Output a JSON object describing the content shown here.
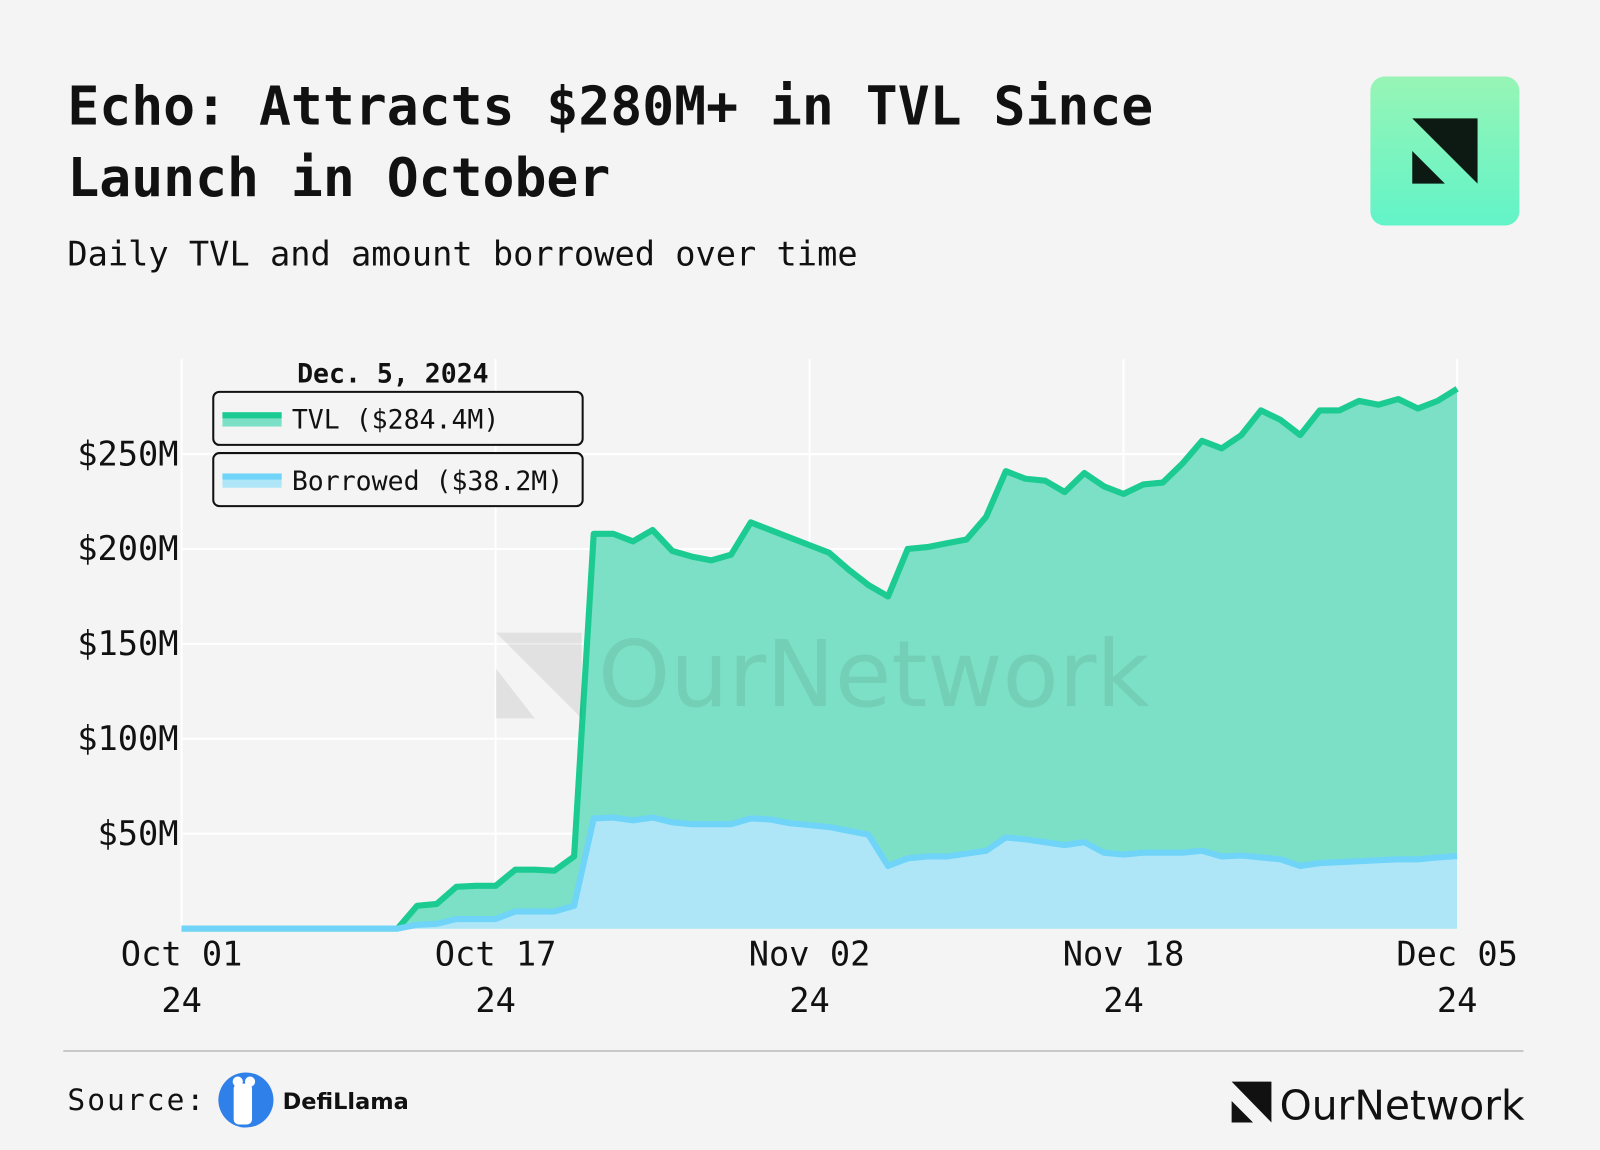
{
  "title": "Echo: Attracts $280M+ in TVL Since Launch in October",
  "subtitle": "Daily TVL and amount borrowed over time",
  "watermark": "OurNetwork",
  "footer": {
    "source_label": "Source:",
    "source_name": "DefiLlama",
    "brand": "OurNetwork"
  },
  "chart_data": {
    "type": "area",
    "legend_title": "Dec. 5, 2024",
    "legend": "upper-left",
    "grid": true,
    "x": [
      "2024-10-01",
      "2024-10-02",
      "2024-10-03",
      "2024-10-04",
      "2024-10-05",
      "2024-10-06",
      "2024-10-07",
      "2024-10-08",
      "2024-10-09",
      "2024-10-10",
      "2024-10-11",
      "2024-10-12",
      "2024-10-13",
      "2024-10-14",
      "2024-10-15",
      "2024-10-16",
      "2024-10-17",
      "2024-10-18",
      "2024-10-19",
      "2024-10-20",
      "2024-10-21",
      "2024-10-22",
      "2024-10-23",
      "2024-10-24",
      "2024-10-25",
      "2024-10-26",
      "2024-10-27",
      "2024-10-28",
      "2024-10-29",
      "2024-10-30",
      "2024-10-31",
      "2024-11-01",
      "2024-11-02",
      "2024-11-03",
      "2024-11-04",
      "2024-11-05",
      "2024-11-06",
      "2024-11-07",
      "2024-11-08",
      "2024-11-09",
      "2024-11-10",
      "2024-11-11",
      "2024-11-12",
      "2024-11-13",
      "2024-11-14",
      "2024-11-15",
      "2024-11-16",
      "2024-11-17",
      "2024-11-18",
      "2024-11-19",
      "2024-11-20",
      "2024-11-21",
      "2024-11-22",
      "2024-11-23",
      "2024-11-24",
      "2024-11-25",
      "2024-11-26",
      "2024-11-27",
      "2024-11-28",
      "2024-11-29",
      "2024-11-30",
      "2024-12-01",
      "2024-12-02",
      "2024-12-03",
      "2024-12-04",
      "2024-12-05"
    ],
    "series": [
      {
        "name": "TVL ($284.4M)",
        "color": "#1ccb91",
        "fill": "#7be0c5",
        "values": [
          0,
          0,
          0,
          0,
          0,
          0,
          0,
          0,
          0,
          0,
          0,
          0,
          12,
          13,
          22,
          22.5,
          22.5,
          31,
          31,
          30.5,
          38,
          208,
          208,
          204,
          210,
          199,
          196,
          194,
          197,
          214,
          210,
          206,
          202,
          198,
          189,
          181,
          175,
          200,
          201,
          203,
          205,
          217,
          241,
          237,
          236,
          230,
          240,
          233,
          229,
          234,
          235,
          245,
          257,
          253,
          260,
          273,
          268,
          260,
          273,
          273,
          278,
          276,
          279,
          274,
          278,
          284.4
        ]
      },
      {
        "name": "Borrowed ($38.2M)",
        "color": "#6fd4f8",
        "fill": "#aee6f7",
        "values": [
          0,
          0,
          0,
          0,
          0,
          0,
          0,
          0,
          0,
          0,
          0,
          0,
          2,
          2.5,
          5,
          5,
          5,
          9,
          9,
          9,
          12,
          58,
          58.5,
          57,
          58.5,
          56,
          55,
          55,
          55,
          58,
          57.5,
          55.5,
          54.5,
          53.5,
          51.5,
          49.5,
          33,
          37,
          38,
          38,
          39.5,
          41,
          48,
          47,
          45.5,
          44,
          45.5,
          40,
          39,
          40,
          40,
          40,
          41,
          38,
          38.5,
          37.5,
          36.5,
          33,
          34.5,
          35,
          35.5,
          36,
          36.5,
          36.5,
          37.5,
          38.2
        ]
      }
    ],
    "xlim": [
      "2024-10-01",
      "2024-12-05"
    ],
    "xticks": [
      {
        "value": "2024-10-01",
        "label": "Oct 01\n24"
      },
      {
        "value": "2024-10-17",
        "label": "Oct 17\n24"
      },
      {
        "value": "2024-11-02",
        "label": "Nov 02\n24"
      },
      {
        "value": "2024-11-18",
        "label": "Nov 18\n24"
      },
      {
        "value": "2024-12-05",
        "label": "Dec 05\n24"
      }
    ],
    "ylim": [
      0,
      300
    ],
    "yticks": [
      {
        "value": 50,
        "label": "$50M"
      },
      {
        "value": 100,
        "label": "$100M"
      },
      {
        "value": 150,
        "label": "$150M"
      },
      {
        "value": 200,
        "label": "$200M"
      },
      {
        "value": 250,
        "label": "$250M"
      }
    ]
  }
}
